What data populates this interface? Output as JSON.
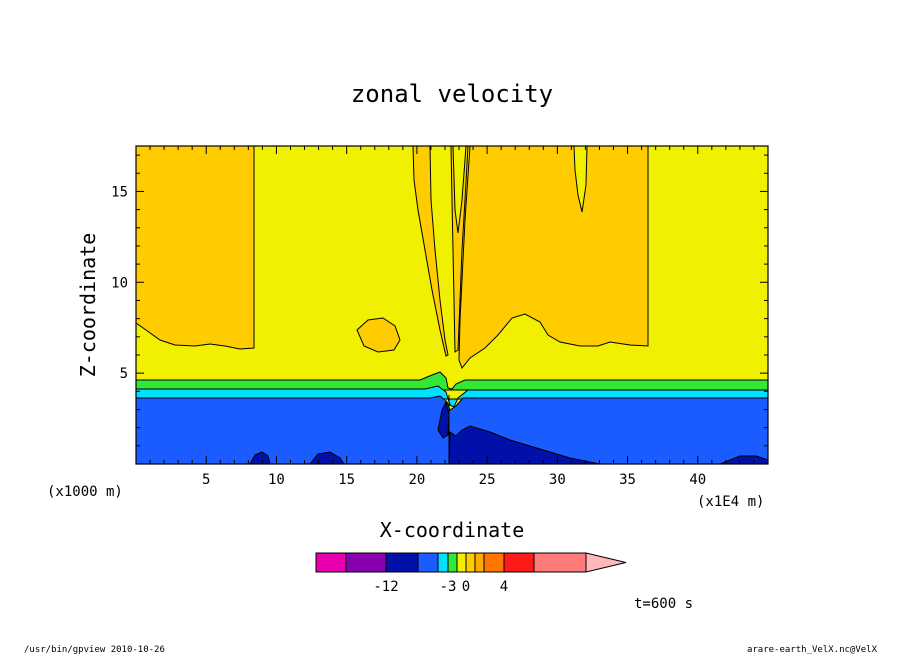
{
  "chart_data": {
    "type": "contour",
    "title": "zonal velocity",
    "xlabel": "X-coordinate",
    "ylabel": "Z-coordinate",
    "x_unit_left": "(x1000 m)",
    "x_unit_right": "(x1E4 m)",
    "xlim": [
      0,
      45
    ],
    "ylim": [
      0,
      17.5
    ],
    "x_ticks": [
      "5",
      "10",
      "15",
      "20",
      "25",
      "30",
      "35",
      "40"
    ],
    "y_ticks": [
      "5",
      "10",
      "15"
    ],
    "grid": false,
    "regions": {
      "orange": "#ffcc00",
      "yellow": "#f0f000",
      "green": "#33e833",
      "cyan": "#00e0ff",
      "blue": "#1a5cff",
      "navy": "#0010a8"
    },
    "colorbar": {
      "colors": [
        "#e800b0",
        "#8800b0",
        "#0010a8",
        "#1a5cff",
        "#00e0ff",
        "#33e833",
        "#f0f000",
        "#ffcc00",
        "#ffaa00",
        "#ff7700",
        "#ff1a1a",
        "#ff7a7a",
        "#ffb8b8"
      ],
      "labels": [
        "-12",
        "-3",
        "0",
        "4"
      ]
    },
    "time_label": "t=600 s"
  },
  "footer": {
    "left": "/usr/bin/gpview  2010-10-26",
    "right": "arare-earth_VelX.nc@VelX"
  }
}
